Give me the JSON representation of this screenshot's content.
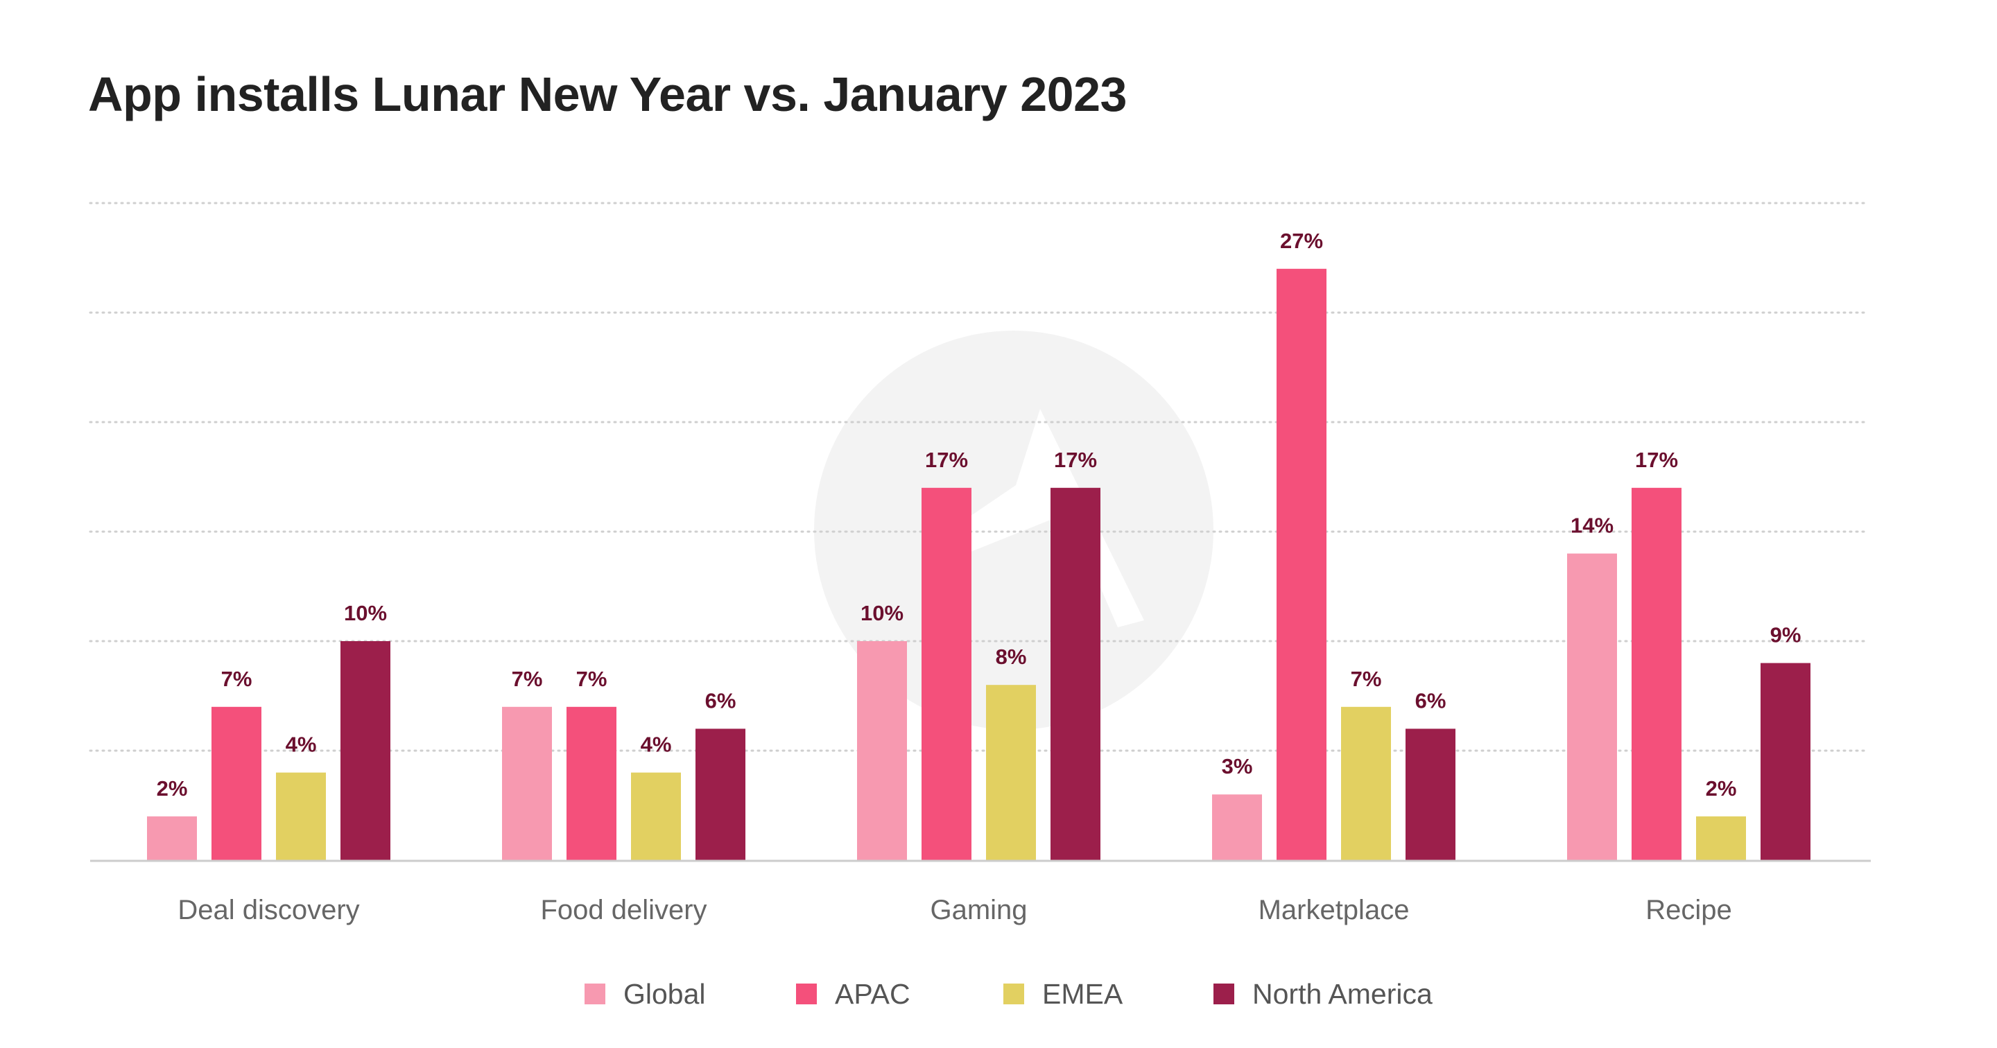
{
  "title": "App installs Lunar New Year vs. January 2023",
  "colors": {
    "Global": "#f799b0",
    "APAC": "#f4507b",
    "EMEA": "#e2d061",
    "North America": "#9c1f4b",
    "data_label": "#6b0f2e",
    "gridline": "#cfcfcf",
    "axis_line": "#cccccc",
    "watermark": "#f3f3f3"
  },
  "chart_data": {
    "type": "bar",
    "title": "App installs Lunar New Year vs. January 2023",
    "categories": [
      "Deal discovery",
      "Food delivery",
      "Gaming",
      "Marketplace",
      "Recipe"
    ],
    "series": [
      {
        "name": "Global",
        "values": [
          2,
          7,
          10,
          3,
          14
        ],
        "labels": [
          "2%",
          "7%",
          "10%",
          "3%",
          "14%"
        ]
      },
      {
        "name": "APAC",
        "values": [
          7,
          7,
          17,
          27,
          17
        ],
        "labels": [
          "7%",
          "7%",
          "17%",
          "27%",
          "17%"
        ]
      },
      {
        "name": "EMEA",
        "values": [
          4,
          4,
          8,
          7,
          2
        ],
        "labels": [
          "4%",
          "4%",
          "8%",
          "7%",
          "2%"
        ]
      },
      {
        "name": "North America",
        "values": [
          10,
          6,
          17,
          6,
          9
        ],
        "labels": [
          "10%",
          "6%",
          "17%",
          "6%",
          "9%"
        ]
      }
    ],
    "xlabel": "",
    "ylabel": "",
    "ylim": [
      0,
      30
    ],
    "grid": true,
    "y_tick_labels_shown": false,
    "legend_position": "bottom-center",
    "watermark": "app logo"
  }
}
